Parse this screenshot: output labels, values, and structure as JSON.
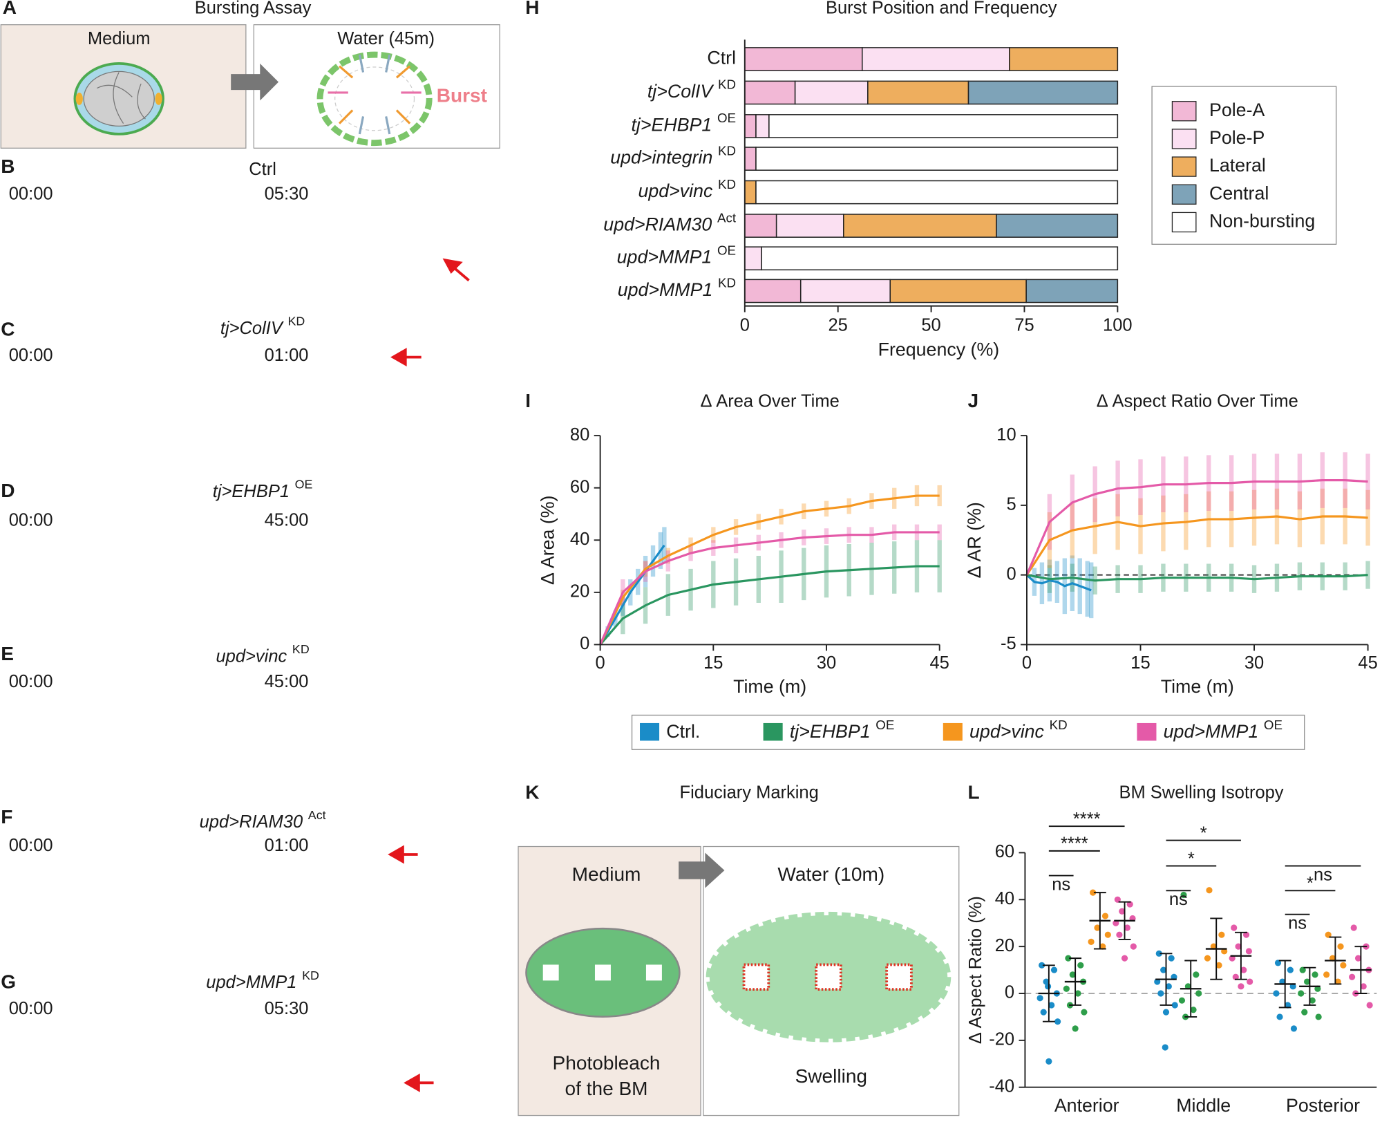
{
  "panels": {
    "A": {
      "letter": "A",
      "title": "Bursting Assay",
      "left_label": "Medium",
      "right_label": "Water (45m)",
      "burst_label": "Burst"
    },
    "K": {
      "letter": "K",
      "title": "Fiduciary Marking",
      "left_label": "Medium",
      "right_label": "Water (10m)",
      "left_caption": [
        "Photobleach",
        "of the BM"
      ],
      "right_caption": "Swelling"
    }
  },
  "timelapse": [
    {
      "letter": "B",
      "condition": "Ctrl",
      "start": "00:00",
      "end": "05:30"
    },
    {
      "letter": "C",
      "condition": "tj>ColIV",
      "condition_sup": "KD",
      "start": "00:00",
      "end": "01:00"
    },
    {
      "letter": "D",
      "condition": "tj>EHBP1",
      "condition_sup": "OE",
      "start": "00:00",
      "end": "45:00"
    },
    {
      "letter": "E",
      "condition": "upd>vinc",
      "condition_sup": "KD",
      "start": "00:00",
      "end": "45:00"
    },
    {
      "letter": "F",
      "condition": "upd>RIAM30",
      "condition_sup": "Act",
      "start": "00:00",
      "end": "01:00"
    },
    {
      "letter": "G",
      "condition": "upd>MMP1",
      "condition_sup": "KD",
      "start": "00:00",
      "end": "05:30"
    }
  ],
  "chart_data": [
    {
      "type": "stacked-barh",
      "panel": "H",
      "title": "Burst Position and Frequency",
      "x_label": "Frequency (%)",
      "categories": [
        "Ctrl",
        "tj>ColIV",
        "tj>EHBP1",
        "upd>integrin",
        "upd>vinc",
        "upd>RIAM30",
        "upd>MMP1",
        "upd>MMP1"
      ],
      "category_superscripts": [
        null,
        "KD",
        "OE",
        "KD",
        "KD",
        "Act",
        "OE",
        "KD"
      ],
      "series": [
        {
          "name": "Pole-A",
          "color": "#f2b8d6",
          "values": [
            31.5,
            13.5,
            3,
            3,
            0,
            8.5,
            0,
            15
          ]
        },
        {
          "name": "Pole-P",
          "color": "#fbe0f2",
          "values": [
            39.5,
            19.5,
            3.5,
            0,
            0,
            18,
            4.5,
            24
          ]
        },
        {
          "name": "Lateral",
          "color": "#eeae5e",
          "values": [
            29,
            27,
            0,
            0,
            3,
            41,
            0,
            36.5
          ]
        },
        {
          "name": "Central",
          "color": "#7ea3b8",
          "values": [
            0,
            40,
            0,
            0,
            0,
            32.5,
            0,
            24.5
          ]
        },
        {
          "name": "Non-bursting",
          "color": "#ffffff",
          "values": [
            0,
            0,
            93.5,
            97,
            97,
            0,
            95.5,
            0
          ]
        }
      ],
      "xlim": [
        0,
        100
      ],
      "xticks": [
        0,
        25,
        50,
        75,
        100
      ],
      "legend": "right"
    },
    {
      "type": "line-error",
      "panel": "I",
      "title": "Δ Area Over Time",
      "x_label": "Time (m)",
      "y_label": "Δ Area (%)",
      "xlim": [
        0,
        45
      ],
      "xticks": [
        0,
        15,
        30,
        45
      ],
      "ylim": [
        0,
        80
      ],
      "yticks": [
        0,
        20,
        40,
        60,
        80
      ],
      "series": [
        {
          "name": "Ctrl.",
          "color": "#1a8cc8",
          "x": [
            0,
            1,
            2,
            3,
            4,
            5,
            6,
            7,
            8,
            8.5
          ],
          "values": [
            0,
            5,
            10,
            15,
            20,
            24,
            28,
            32,
            36,
            38
          ],
          "errors": [
            0,
            2,
            3,
            4,
            5,
            5,
            6,
            6,
            7,
            7
          ]
        },
        {
          "name": "tj>EHBP1",
          "name_sup": "OE",
          "color": "#2a9660",
          "x": [
            0,
            3,
            6,
            9,
            12,
            15,
            18,
            21,
            24,
            27,
            30,
            33,
            36,
            39,
            42,
            45
          ],
          "values": [
            0,
            10,
            15,
            19,
            21,
            23,
            24,
            25,
            26,
            27,
            28,
            28.5,
            29,
            29.5,
            30,
            30
          ],
          "errors": [
            0,
            6,
            7,
            8,
            8,
            9,
            9,
            9,
            10,
            10,
            10,
            10,
            10,
            10,
            10,
            10
          ]
        },
        {
          "name": "upd>vinc",
          "name_sup": "KD",
          "color": "#f5961e",
          "x": [
            0,
            3,
            6,
            9,
            12,
            15,
            18,
            21,
            24,
            27,
            30,
            33,
            36,
            39,
            42,
            45
          ],
          "values": [
            0,
            18,
            29,
            34,
            38,
            42,
            45,
            47,
            49,
            51,
            52,
            53,
            55,
            56,
            57,
            57
          ],
          "errors": [
            0,
            3,
            3,
            3,
            3,
            3,
            3,
            3,
            3,
            3,
            3,
            3,
            3,
            4,
            4,
            4
          ]
        },
        {
          "name": "upd>MMP1",
          "name_sup": "OE",
          "color": "#e45aa8",
          "x": [
            0,
            3,
            6,
            9,
            12,
            15,
            18,
            21,
            24,
            27,
            30,
            33,
            36,
            39,
            42,
            45
          ],
          "values": [
            0,
            20,
            28,
            32,
            35,
            37,
            38,
            39,
            40,
            41,
            41.5,
            42,
            42,
            43,
            43,
            43
          ],
          "errors": [
            0,
            5,
            4,
            4,
            3,
            3,
            3,
            3,
            3,
            3,
            3,
            3,
            3,
            3,
            3,
            3
          ]
        }
      ]
    },
    {
      "type": "line-error",
      "panel": "J",
      "title": "Δ Aspect Ratio Over Time",
      "x_label": "Time (m)",
      "y_label": "Δ AR (%)",
      "xlim": [
        0,
        45
      ],
      "xticks": [
        0,
        15,
        30,
        45
      ],
      "ylim": [
        -5,
        10
      ],
      "yticks": [
        -5,
        0,
        5,
        10
      ],
      "series": [
        {
          "color": "#1a8cc8",
          "x": [
            0,
            1,
            2,
            3,
            4,
            5,
            6,
            7,
            8,
            8.5
          ],
          "values": [
            0,
            -0.5,
            -0.6,
            -0.4,
            -0.5,
            -0.8,
            -0.6,
            -0.8,
            -1,
            -1.1
          ],
          "errors": [
            0,
            1,
            1.5,
            1.5,
            1.5,
            2,
            2,
            2,
            2,
            2
          ]
        },
        {
          "color": "#2a9660",
          "x": [
            0,
            3,
            6,
            9,
            12,
            15,
            18,
            21,
            24,
            27,
            30,
            33,
            36,
            39,
            42,
            45
          ],
          "values": [
            0,
            -0.3,
            -0.2,
            -0.4,
            -0.3,
            -0.3,
            -0.2,
            -0.2,
            -0.2,
            -0.2,
            -0.3,
            -0.2,
            -0.1,
            -0.1,
            -0.1,
            0
          ],
          "errors": [
            0,
            1,
            1,
            1,
            1,
            1,
            1,
            1,
            1,
            1,
            1,
            1,
            1,
            1,
            1,
            1
          ]
        },
        {
          "color": "#f5961e",
          "x": [
            0,
            3,
            6,
            9,
            12,
            15,
            18,
            21,
            24,
            27,
            30,
            33,
            36,
            39,
            42,
            45
          ],
          "values": [
            0,
            2.5,
            3.2,
            3.5,
            3.8,
            3.5,
            3.7,
            3.8,
            4,
            4,
            4.1,
            4.2,
            4,
            4.2,
            4.2,
            4.1
          ],
          "errors": [
            0,
            2,
            2,
            2,
            2,
            2,
            2,
            2,
            2,
            2,
            2,
            2,
            2,
            2,
            2,
            2
          ]
        },
        {
          "color": "#e45aa8",
          "x": [
            0,
            3,
            6,
            9,
            12,
            15,
            18,
            21,
            24,
            27,
            30,
            33,
            36,
            39,
            42,
            45
          ],
          "values": [
            0,
            3.8,
            5.2,
            5.8,
            6.2,
            6.3,
            6.5,
            6.5,
            6.6,
            6.6,
            6.7,
            6.7,
            6.7,
            6.8,
            6.8,
            6.7
          ],
          "errors": [
            0,
            2,
            2,
            2,
            2,
            2,
            2,
            2,
            2,
            2,
            2,
            2,
            2,
            2,
            2,
            2
          ]
        }
      ]
    },
    {
      "type": "strip",
      "panel": "L",
      "title": "BM Swelling Isotropy",
      "y_label": "Δ Aspect Ratio (%)",
      "categories": [
        "Anterior",
        "Middle",
        "Posterior"
      ],
      "ylim": [
        -40,
        60
      ],
      "yticks": [
        -40,
        -20,
        0,
        20,
        40,
        60
      ],
      "series": [
        {
          "color": "#1a8cc8",
          "points": [
            [
              12,
              10,
              5,
              0,
              -2,
              -5,
              -8,
              -12,
              -29,
              3
            ],
            [
              17,
              15,
              10,
              7,
              5,
              3,
              0,
              -5,
              -8,
              -23
            ],
            [
              13,
              10,
              5,
              3,
              0,
              -5,
              -10,
              -15
            ]
          ],
          "mean": [
            0,
            6,
            4
          ],
          "sd": [
            12,
            11,
            10
          ]
        },
        {
          "color": "#2e9e4a",
          "points": [
            [
              15,
              12,
              8,
              5,
              2,
              0,
              -5,
              -8,
              -15
            ],
            [
              42,
              8,
              3,
              0,
              -3,
              -7,
              -10
            ],
            [
              10,
              8,
              5,
              2,
              0,
              -3,
              -8,
              -10
            ]
          ],
          "mean": [
            5,
            2,
            3
          ],
          "sd": [
            10,
            12,
            8
          ]
        },
        {
          "color": "#f5961e",
          "points": [
            [
              43,
              33,
              28,
              25,
              22,
              20
            ],
            [
              44,
              25,
              20,
              18,
              15,
              12
            ],
            [
              25,
              20,
              15,
              12,
              8,
              5
            ]
          ],
          "mean": [
            31,
            19,
            14
          ],
          "sd": [
            12,
            13,
            10
          ]
        },
        {
          "color": "#e45aa8",
          "points": [
            [
              40,
              38,
              35,
              32,
              30,
              28,
              25,
              20,
              15
            ],
            [
              28,
              25,
              20,
              18,
              15,
              10,
              7,
              5,
              3
            ],
            [
              28,
              20,
              15,
              10,
              7,
              3,
              0,
              -5
            ]
          ],
          "mean": [
            31,
            16,
            10
          ],
          "sd": [
            8,
            10,
            10
          ]
        }
      ],
      "annotations": [
        "****",
        "****",
        "ns",
        "*",
        "*",
        "ns",
        "ns",
        "*",
        "ns"
      ]
    }
  ]
}
